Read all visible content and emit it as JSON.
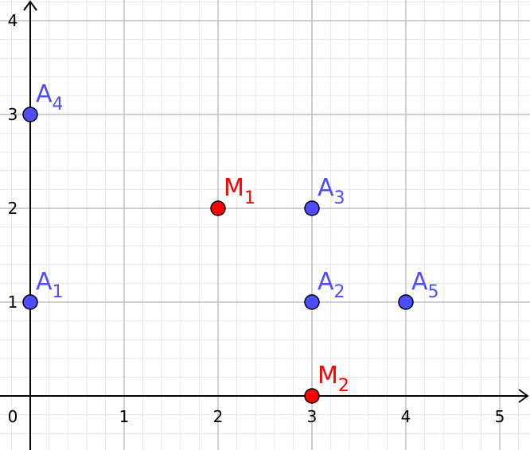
{
  "chart_data": {
    "type": "scatter",
    "x_ticks": [
      "0",
      "1",
      "2",
      "3",
      "4",
      "5"
    ],
    "y_ticks": [
      "1",
      "2",
      "3",
      "4"
    ],
    "xlim": [
      0,
      5
    ],
    "ylim": [
      0,
      4
    ],
    "grid": true,
    "minor_grid_divisions": 5,
    "colors": {
      "major_grid": "#c0c0c0",
      "minor_grid": "#e6e6e6",
      "axis": "#000000",
      "blue_point": "#4d4dff",
      "red_point": "#ff0000",
      "point_outline": "#000000"
    },
    "points": [
      {
        "base": "A",
        "sub": "1",
        "x": 0,
        "y": 1,
        "color": "#4d4dff"
      },
      {
        "base": "A",
        "sub": "2",
        "x": 3,
        "y": 1,
        "color": "#4d4dff"
      },
      {
        "base": "A",
        "sub": "3",
        "x": 3,
        "y": 2,
        "color": "#4d4dff"
      },
      {
        "base": "A",
        "sub": "4",
        "x": 0,
        "y": 3,
        "color": "#4d4dff"
      },
      {
        "base": "A",
        "sub": "5",
        "x": 4,
        "y": 1,
        "color": "#4d4dff"
      },
      {
        "base": "M",
        "sub": "1",
        "x": 2,
        "y": 2,
        "color": "#ff0000"
      },
      {
        "base": "M",
        "sub": "2",
        "x": 3,
        "y": 0,
        "color": "#ff0000"
      }
    ]
  }
}
